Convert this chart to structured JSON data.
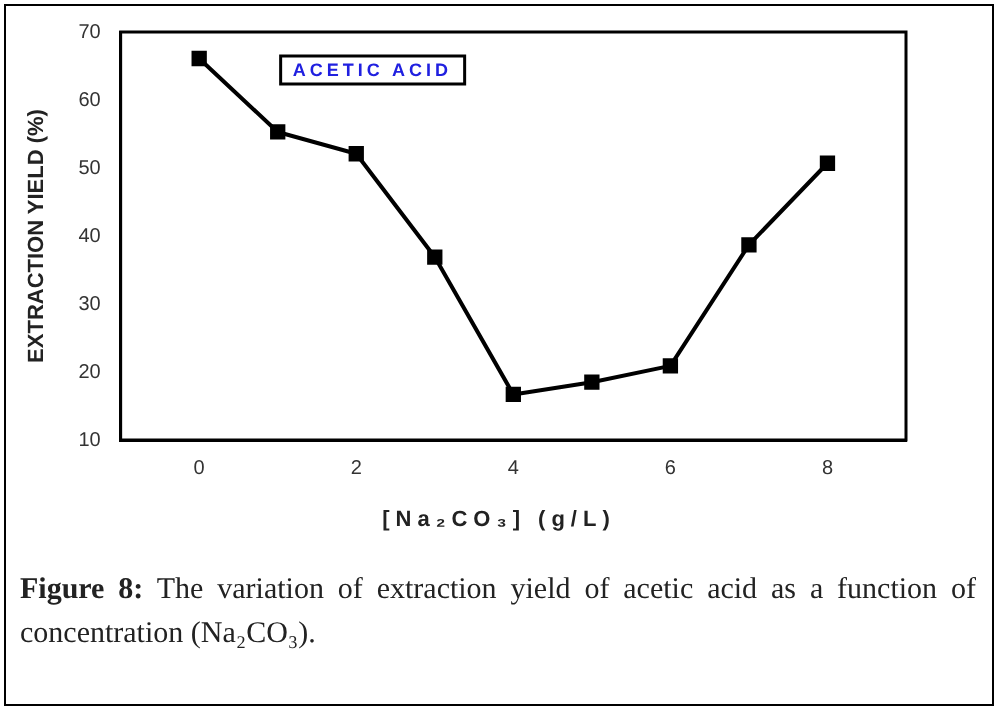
{
  "chart_data": {
    "type": "line",
    "xlabel": "[Na₂CO₃] (g/L)",
    "ylabel": "EXTRACTION YIELD (%)",
    "x": [
      0,
      1,
      2,
      3,
      4,
      5,
      6,
      7,
      8
    ],
    "series": [
      {
        "name": "ACETIC ACID",
        "color": "#000000",
        "values": [
          66.1,
          55.3,
          52.1,
          36.9,
          16.7,
          18.5,
          20.9,
          38.7,
          50.7
        ]
      }
    ],
    "xlim": [
      -1,
      9
    ],
    "xticks": [
      0,
      2,
      4,
      6,
      8
    ],
    "ylim": [
      10,
      70
    ],
    "yticks": [
      10,
      20,
      30,
      40,
      50,
      60,
      70
    ],
    "marker": "square",
    "line_style": "solid",
    "grid": false,
    "legend": "top left",
    "annotations": [
      "Figure 8: The variation of extraction yield of acetic acid as a function of concentration (Na₂CO₃)."
    ]
  }
}
